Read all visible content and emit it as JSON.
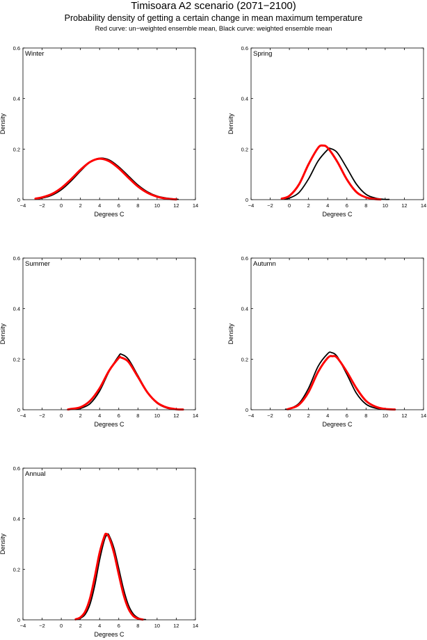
{
  "title": "Timisoara A2 scenario (2071−2100)",
  "subtitle": "Probability density of getting a certain change in mean maximum temperature",
  "subtitle2": "Red curve: un−weighted ensemble mean, Black curve: weighted ensemble mean",
  "colors": {
    "unweighted": "#ff0000",
    "weighted": "#000000"
  },
  "chart_data": [
    {
      "type": "line",
      "panel": "Winter",
      "xlabel": "Degrees C",
      "ylabel": "Density",
      "xlim": [
        -4,
        14
      ],
      "ylim": [
        0,
        0.6
      ],
      "xticks": [
        -4,
        -2,
        0,
        2,
        4,
        6,
        8,
        10,
        12,
        14
      ],
      "yticks": [
        0,
        0.2,
        0.4,
        0.6
      ],
      "series": [
        {
          "color": "#ff0000",
          "x": [
            -2.7,
            -2,
            -1,
            0,
            1,
            2,
            3,
            4,
            5,
            6,
            7,
            8,
            9,
            10,
            11,
            12
          ],
          "values": [
            0.004,
            0.009,
            0.022,
            0.046,
            0.08,
            0.118,
            0.149,
            0.162,
            0.152,
            0.124,
            0.087,
            0.052,
            0.027,
            0.012,
            0.004,
            0.001
          ]
        },
        {
          "color": "#000000",
          "x": [
            -2.7,
            -2,
            -1,
            0,
            1,
            2,
            3,
            4,
            5,
            6,
            7,
            8,
            9,
            10,
            11,
            12,
            12.2
          ],
          "values": [
            0.002,
            0.006,
            0.017,
            0.039,
            0.073,
            0.113,
            0.148,
            0.164,
            0.157,
            0.13,
            0.094,
            0.058,
            0.031,
            0.014,
            0.006,
            0.002,
            0.001
          ]
        }
      ]
    },
    {
      "type": "line",
      "panel": "Spring",
      "xlabel": "Degrees C",
      "ylabel": "Density",
      "xlim": [
        -4,
        14
      ],
      "ylim": [
        0,
        0.6
      ],
      "xticks": [
        -4,
        -2,
        0,
        2,
        4,
        6,
        8,
        10,
        12,
        14
      ],
      "yticks": [
        0,
        0.2,
        0.4,
        0.6
      ],
      "series": [
        {
          "color": "#ff0000",
          "x": [
            -0.8,
            0,
            1,
            2,
            3,
            3.5,
            4,
            5,
            6,
            7,
            8,
            9,
            9.5
          ],
          "values": [
            0.004,
            0.015,
            0.06,
            0.14,
            0.205,
            0.214,
            0.205,
            0.15,
            0.08,
            0.03,
            0.009,
            0.002,
            0.001
          ]
        },
        {
          "color": "#000000",
          "x": [
            -0.5,
            0,
            1,
            2,
            3,
            4,
            4.3,
            5,
            6,
            7,
            8,
            9,
            10,
            10.4
          ],
          "values": [
            0.002,
            0.006,
            0.028,
            0.082,
            0.153,
            0.198,
            0.202,
            0.186,
            0.125,
            0.061,
            0.021,
            0.006,
            0.001,
            0.001
          ]
        }
      ]
    },
    {
      "type": "line",
      "panel": "Summer",
      "xlabel": "Degrees C",
      "ylabel": "Density",
      "xlim": [
        -4,
        14
      ],
      "ylim": [
        0,
        0.6
      ],
      "xticks": [
        -4,
        -2,
        0,
        2,
        4,
        6,
        8,
        10,
        12,
        14
      ],
      "yticks": [
        0,
        0.2,
        0.4,
        0.6
      ],
      "series": [
        {
          "color": "#ff0000",
          "x": [
            0.7,
            1,
            2,
            3,
            4,
            5,
            6,
            6.2,
            7,
            8,
            9,
            10,
            11,
            12,
            12.7
          ],
          "values": [
            0.001,
            0.003,
            0.01,
            0.035,
            0.085,
            0.155,
            0.205,
            0.207,
            0.19,
            0.13,
            0.068,
            0.028,
            0.009,
            0.002,
            0.001
          ]
        },
        {
          "color": "#000000",
          "x": [
            1.5,
            2,
            3,
            4,
            5,
            6,
            6.3,
            7,
            8,
            9,
            10,
            11,
            12,
            12.3
          ],
          "values": [
            0.002,
            0.005,
            0.024,
            0.074,
            0.152,
            0.213,
            0.219,
            0.2,
            0.135,
            0.069,
            0.026,
            0.007,
            0.001,
            0.001
          ]
        }
      ]
    },
    {
      "type": "line",
      "panel": "Autumn",
      "xlabel": "Degrees C",
      "ylabel": "Density",
      "xlim": [
        -4,
        14
      ],
      "ylim": [
        0,
        0.6
      ],
      "xticks": [
        -4,
        -2,
        0,
        2,
        4,
        6,
        8,
        10,
        12,
        14
      ],
      "yticks": [
        0,
        0.2,
        0.4,
        0.6
      ],
      "series": [
        {
          "color": "#ff0000",
          "x": [
            -0.2,
            0,
            1,
            2,
            3,
            4,
            4.5,
            5,
            6,
            7,
            8,
            9,
            10,
            11
          ],
          "values": [
            0.002,
            0.004,
            0.02,
            0.07,
            0.15,
            0.205,
            0.212,
            0.205,
            0.15,
            0.085,
            0.035,
            0.012,
            0.003,
            0.001
          ]
        },
        {
          "color": "#000000",
          "x": [
            -0.4,
            0,
            1,
            2,
            3,
            4,
            4.4,
            5,
            6,
            7,
            8,
            9,
            10
          ],
          "values": [
            0.002,
            0.004,
            0.025,
            0.085,
            0.172,
            0.222,
            0.226,
            0.21,
            0.14,
            0.065,
            0.022,
            0.006,
            0.001
          ]
        }
      ]
    },
    {
      "type": "line",
      "panel": "Annual",
      "xlabel": "Degrees C",
      "ylabel": "Density",
      "xlim": [
        -4,
        14
      ],
      "ylim": [
        0,
        0.6
      ],
      "xticks": [
        -4,
        -2,
        0,
        2,
        4,
        6,
        8,
        10,
        12,
        14
      ],
      "yticks": [
        0,
        0.2,
        0.4,
        0.6
      ],
      "series": [
        {
          "color": "#ff0000",
          "x": [
            1.5,
            2,
            2.5,
            3,
            3.5,
            4,
            4.5,
            4.7,
            5,
            5.5,
            6,
            6.5,
            7,
            7.5,
            8,
            8.5
          ],
          "values": [
            0.002,
            0.01,
            0.033,
            0.085,
            0.17,
            0.265,
            0.33,
            0.34,
            0.325,
            0.265,
            0.18,
            0.1,
            0.045,
            0.016,
            0.005,
            0.001
          ]
        },
        {
          "color": "#000000",
          "x": [
            1.7,
            2,
            2.5,
            3,
            3.5,
            4,
            4.5,
            4.8,
            5,
            5.5,
            6,
            6.5,
            7,
            7.5,
            8,
            8.5,
            8.8
          ],
          "values": [
            0.002,
            0.006,
            0.022,
            0.062,
            0.137,
            0.237,
            0.316,
            0.338,
            0.333,
            0.283,
            0.203,
            0.121,
            0.059,
            0.024,
            0.008,
            0.002,
            0.001
          ]
        }
      ]
    }
  ]
}
